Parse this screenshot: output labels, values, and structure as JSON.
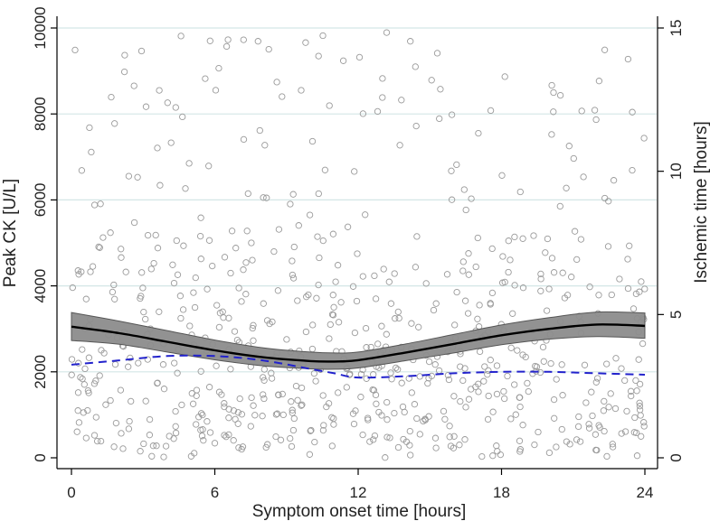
{
  "chart_data": {
    "type": "scatter",
    "xlabel": "Symptom onset time [hours]",
    "ylabel": "Peak CK [U/L]",
    "y2label": "Ischemic time [hours]",
    "xlim": [
      0,
      24
    ],
    "ylim": [
      0,
      10000
    ],
    "y2lim": [
      0,
      15
    ],
    "x_ticks": [
      0,
      6,
      12,
      18,
      24
    ],
    "x_tick_labels": [
      "0",
      "6",
      "12",
      "18",
      "24"
    ],
    "y_ticks": [
      0,
      2000,
      4000,
      6000,
      8000,
      10000
    ],
    "y_tick_labels": [
      "0",
      "2000",
      "4000",
      "6000",
      "8000",
      "10000"
    ],
    "y2_ticks": [
      0,
      5,
      10,
      15
    ],
    "y2_tick_labels": [
      "0",
      "5",
      "10",
      "15"
    ],
    "grid": "horizontal",
    "colors": {
      "points": "#9a9a9a",
      "fit_line": "#000000",
      "ci_band": "#8c8c8c",
      "ischemic_line": "#2222cc",
      "grid": "#d4e6e6"
    },
    "series": [
      {
        "name": "Peak CK fit",
        "axis": "left",
        "style": "solid",
        "x": [
          0,
          2,
          4,
          6,
          8,
          10,
          11,
          12,
          14,
          16,
          18,
          20,
          22,
          24
        ],
        "values": [
          3050,
          2900,
          2700,
          2500,
          2340,
          2250,
          2240,
          2270,
          2450,
          2650,
          2850,
          3000,
          3100,
          3070
        ]
      },
      {
        "name": "Peak CK fit 95% CI",
        "axis": "left",
        "style": "band",
        "x": [
          0,
          2,
          4,
          6,
          8,
          10,
          11,
          12,
          14,
          16,
          18,
          20,
          22,
          24
        ],
        "upper": [
          3380,
          3180,
          2960,
          2740,
          2560,
          2460,
          2440,
          2460,
          2650,
          2870,
          3090,
          3260,
          3390,
          3370
        ],
        "lower": [
          2730,
          2640,
          2460,
          2280,
          2140,
          2070,
          2060,
          2090,
          2260,
          2440,
          2630,
          2760,
          2820,
          2780
        ]
      },
      {
        "name": "Ischemic time",
        "axis": "right",
        "style": "dashed",
        "x": [
          0,
          2,
          4,
          6,
          8,
          10,
          11,
          12,
          14,
          16,
          18,
          20,
          22,
          24
        ],
        "values": [
          3.25,
          3.4,
          3.55,
          3.55,
          3.4,
          3.1,
          2.95,
          2.8,
          2.85,
          2.95,
          3.0,
          3.0,
          2.95,
          2.9
        ]
      }
    ],
    "points_seed": 20240611,
    "points_note": "Individual patient observations (open grey circles); approximate scatter"
  }
}
